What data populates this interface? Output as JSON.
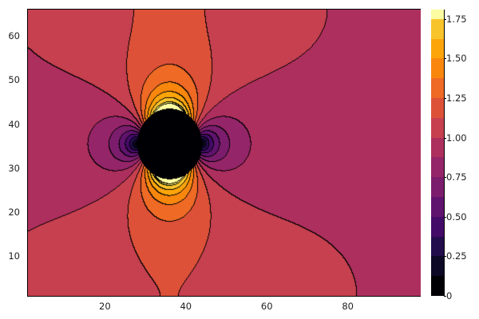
{
  "chart_data": {
    "type": "contour",
    "title": "",
    "xlabel": "",
    "ylabel": "",
    "xlim": [
      1,
      98
    ],
    "ylim": [
      1,
      66
    ],
    "x_ticks": [
      "20",
      "40",
      "60",
      "80"
    ],
    "x_tick_values": [
      20,
      40,
      60,
      80
    ],
    "y_ticks": [
      "10",
      "20",
      "30",
      "40",
      "50",
      "60"
    ],
    "y_tick_values": [
      10,
      20,
      30,
      40,
      50,
      60
    ],
    "field": "flow speed around a circular obstacle",
    "obstacle_center": [
      36,
      35.5
    ],
    "obstacle_radius": 8,
    "far_field_value": 1.0,
    "levels": [
      0,
      0.125,
      0.25,
      0.375,
      0.5,
      0.625,
      0.75,
      0.875,
      1.0,
      1.125,
      1.25,
      1.375,
      1.5,
      1.625,
      1.75
    ],
    "colorbar": {
      "range": [
        0,
        1.81
      ],
      "ticks": [
        "0",
        "0.25",
        "0.50",
        "0.75",
        "1.00",
        "1.25",
        "1.50",
        "1.75"
      ],
      "tick_values": [
        0,
        0.25,
        0.5,
        0.75,
        1.0,
        1.25,
        1.5,
        1.75
      ],
      "colormap": "inferno",
      "band_colors": [
        "#000004",
        "#0c0826",
        "#230c4c",
        "#440a68",
        "#5f136e",
        "#7b1d6c",
        "#952569",
        "#ad2f5e",
        "#c6404f",
        "#dd5139",
        "#ee6a25",
        "#f9870e",
        "#fca50a",
        "#f8c42c",
        "#f2e55e",
        "#fcfca2"
      ]
    },
    "grid": false,
    "legend": "none"
  }
}
